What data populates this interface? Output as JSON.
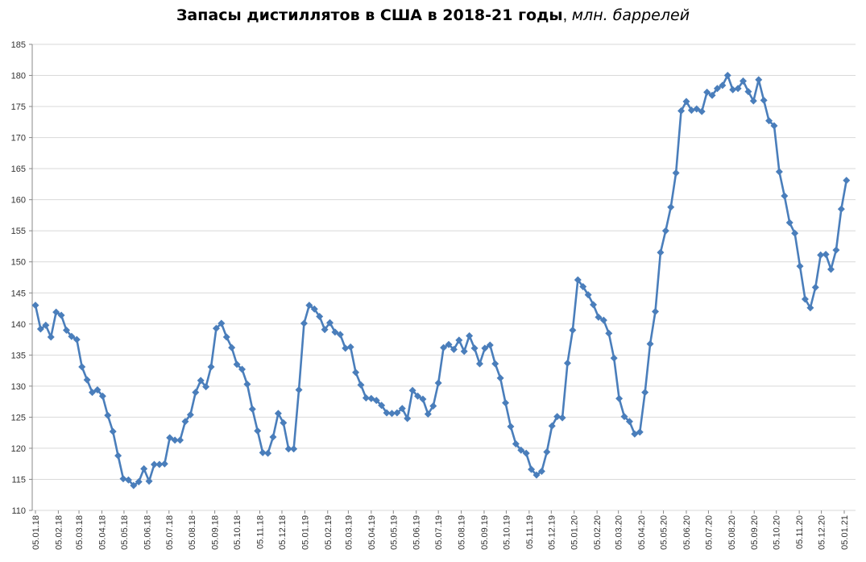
{
  "chart_data": {
    "type": "line",
    "title": "Запасы дистиллятов в США в 2018-21 годы",
    "subtitle": "млн. баррелей",
    "xlabel": "",
    "ylabel": "",
    "ylim": [
      110,
      185
    ],
    "yticks": [
      110,
      115,
      120,
      125,
      130,
      135,
      140,
      145,
      150,
      155,
      160,
      165,
      170,
      175,
      180,
      185
    ],
    "xlim": [
      "2018-01-05",
      "2021-01-08"
    ],
    "xticks": [
      "05.01.18",
      "05.02.18",
      "05.03.18",
      "05.04.18",
      "05.05.18",
      "05.06.18",
      "05.07.18",
      "05.08.18",
      "05.09.18",
      "05.10.18",
      "05.11.18",
      "05.12.18",
      "05.01.19",
      "05.02.19",
      "05.03.19",
      "05.04.19",
      "05.05.19",
      "05.06.19",
      "05.07.19",
      "05.08.19",
      "05.09.19",
      "05.10.19",
      "05.11.19",
      "05.12.19",
      "05.01.20",
      "05.02.20",
      "05.03.20",
      "05.04.20",
      "05.05.20",
      "05.06.20",
      "05.07.20",
      "05.08.20",
      "05.09.20",
      "05.10.20",
      "05.11.20",
      "05.12.20",
      "05.01.21"
    ],
    "grid": true,
    "legend": "none",
    "color": "#4a7ebb",
    "marker": "diamond",
    "x": [
      "2018-01-05",
      "2018-01-12",
      "2018-01-19",
      "2018-01-26",
      "2018-02-02",
      "2018-02-09",
      "2018-02-16",
      "2018-02-23",
      "2018-03-02",
      "2018-03-09",
      "2018-03-16",
      "2018-03-23",
      "2018-03-30",
      "2018-04-06",
      "2018-04-13",
      "2018-04-20",
      "2018-04-27",
      "2018-05-04",
      "2018-05-11",
      "2018-05-18",
      "2018-05-25",
      "2018-06-01",
      "2018-06-08",
      "2018-06-15",
      "2018-06-22",
      "2018-06-29",
      "2018-07-06",
      "2018-07-13",
      "2018-07-20",
      "2018-07-27",
      "2018-08-03",
      "2018-08-10",
      "2018-08-17",
      "2018-08-24",
      "2018-08-31",
      "2018-09-07",
      "2018-09-14",
      "2018-09-21",
      "2018-09-28",
      "2018-10-05",
      "2018-10-12",
      "2018-10-19",
      "2018-10-26",
      "2018-11-02",
      "2018-11-09",
      "2018-11-16",
      "2018-11-23",
      "2018-11-30",
      "2018-12-07",
      "2018-12-14",
      "2018-12-21",
      "2018-12-28",
      "2019-01-04",
      "2019-01-11",
      "2019-01-18",
      "2019-01-25",
      "2019-02-01",
      "2019-02-08",
      "2019-02-15",
      "2019-02-22",
      "2019-03-01",
      "2019-03-08",
      "2019-03-15",
      "2019-03-22",
      "2019-03-29",
      "2019-04-05",
      "2019-04-12",
      "2019-04-19",
      "2019-04-26",
      "2019-05-03",
      "2019-05-10",
      "2019-05-17",
      "2019-05-24",
      "2019-05-31",
      "2019-06-07",
      "2019-06-14",
      "2019-06-21",
      "2019-06-28",
      "2019-07-05",
      "2019-07-12",
      "2019-07-19",
      "2019-07-26",
      "2019-08-02",
      "2019-08-09",
      "2019-08-16",
      "2019-08-23",
      "2019-08-30",
      "2019-09-06",
      "2019-09-13",
      "2019-09-20",
      "2019-09-27",
      "2019-10-04",
      "2019-10-11",
      "2019-10-18",
      "2019-10-25",
      "2019-11-01",
      "2019-11-08",
      "2019-11-15",
      "2019-11-22",
      "2019-11-29",
      "2019-12-06",
      "2019-12-13",
      "2019-12-20",
      "2019-12-27",
      "2020-01-03",
      "2020-01-10",
      "2020-01-17",
      "2020-01-24",
      "2020-01-31",
      "2020-02-07",
      "2020-02-14",
      "2020-02-21",
      "2020-02-28",
      "2020-03-06",
      "2020-03-13",
      "2020-03-20",
      "2020-03-27",
      "2020-04-03",
      "2020-04-10",
      "2020-04-17",
      "2020-04-24",
      "2020-05-01",
      "2020-05-08",
      "2020-05-15",
      "2020-05-22",
      "2020-05-29",
      "2020-06-05",
      "2020-06-12",
      "2020-06-19",
      "2020-06-26",
      "2020-07-03",
      "2020-07-10",
      "2020-07-17",
      "2020-07-24",
      "2020-07-31",
      "2020-08-07",
      "2020-08-14",
      "2020-08-21",
      "2020-08-28",
      "2020-09-04",
      "2020-09-11",
      "2020-09-18",
      "2020-09-25",
      "2020-10-02",
      "2020-10-09",
      "2020-10-16",
      "2020-10-23",
      "2020-10-30",
      "2020-11-06",
      "2020-11-13",
      "2020-11-20",
      "2020-11-27",
      "2020-12-04",
      "2020-12-11",
      "2020-12-18",
      "2020-12-25",
      "2021-01-01",
      "2021-01-08"
    ],
    "values": [
      143.0,
      139.2,
      139.8,
      137.9,
      141.9,
      141.4,
      139.0,
      138.0,
      137.5,
      133.1,
      131.0,
      129.0,
      129.4,
      128.4,
      125.3,
      122.7,
      118.8,
      115.1,
      114.9,
      114.0,
      114.6,
      116.7,
      114.7,
      117.4,
      117.4,
      117.5,
      121.7,
      121.3,
      121.3,
      124.3,
      125.4,
      129.0,
      130.9,
      129.9,
      133.1,
      139.3,
      140.1,
      137.9,
      136.2,
      133.5,
      132.7,
      130.3,
      126.3,
      122.8,
      119.3,
      119.2,
      121.8,
      125.6,
      124.1,
      119.9,
      119.9,
      129.4,
      140.1,
      143.0,
      142.4,
      141.2,
      139.1,
      140.2,
      138.7,
      138.3,
      136.1,
      136.3,
      132.2,
      130.2,
      128.1,
      128.0,
      127.7,
      126.9,
      125.7,
      125.6,
      125.7,
      126.4,
      124.8,
      129.3,
      128.4,
      127.9,
      125.5,
      126.8,
      130.5,
      136.2,
      136.7,
      135.9,
      137.4,
      135.6,
      138.1,
      136.1,
      133.6,
      136.1,
      136.6,
      133.6,
      131.3,
      127.3,
      123.5,
      120.7,
      119.7,
      119.2,
      116.6,
      115.7,
      116.3,
      119.4,
      123.6,
      125.1,
      124.9,
      133.7,
      139.0,
      147.1,
      146.0,
      144.7,
      143.1,
      141.1,
      140.6,
      138.5,
      134.5,
      128.0,
      125.1,
      124.3,
      122.3,
      122.6,
      129.0,
      136.8,
      142.0,
      151.5,
      155.0,
      158.8,
      164.3,
      174.3,
      175.8,
      174.4,
      174.6,
      174.2,
      177.3,
      176.8,
      177.9,
      178.4,
      180.0,
      177.7,
      177.9,
      179.1,
      177.4,
      175.9,
      179.3,
      176.0,
      172.7,
      171.9,
      164.5,
      160.6,
      156.3,
      154.6,
      149.3,
      144.0,
      142.6,
      145.9,
      151.1,
      151.2,
      148.8,
      151.9,
      158.5,
      163.1
    ]
  }
}
